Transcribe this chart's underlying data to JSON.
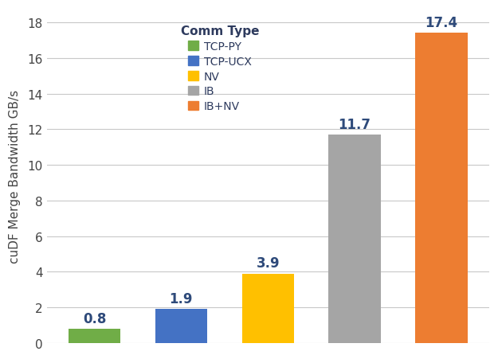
{
  "categories": [
    "TCP-PY",
    "TCP-UCX",
    "NV",
    "IB",
    "IB+NV"
  ],
  "values": [
    0.8,
    1.9,
    3.9,
    11.7,
    17.4
  ],
  "bar_colors": [
    "#70ad47",
    "#4472c4",
    "#ffc000",
    "#a5a5a5",
    "#ed7d31"
  ],
  "label_color": "#2e4a7a",
  "ylabel": "cuDF Merge Bandwidth GB/s",
  "legend_title": "Comm Type",
  "ylim": [
    0,
    18.8
  ],
  "yticks": [
    0,
    2,
    4,
    6,
    8,
    10,
    12,
    14,
    16,
    18
  ],
  "bar_width": 0.6,
  "background_color": "#ffffff",
  "grid_color": "#c8c8c8",
  "tick_fontsize": 11,
  "ylabel_fontsize": 11,
  "legend_fontsize": 10,
  "legend_title_fontsize": 11,
  "value_label_fontsize": 12,
  "value_label_fontweight": "bold"
}
